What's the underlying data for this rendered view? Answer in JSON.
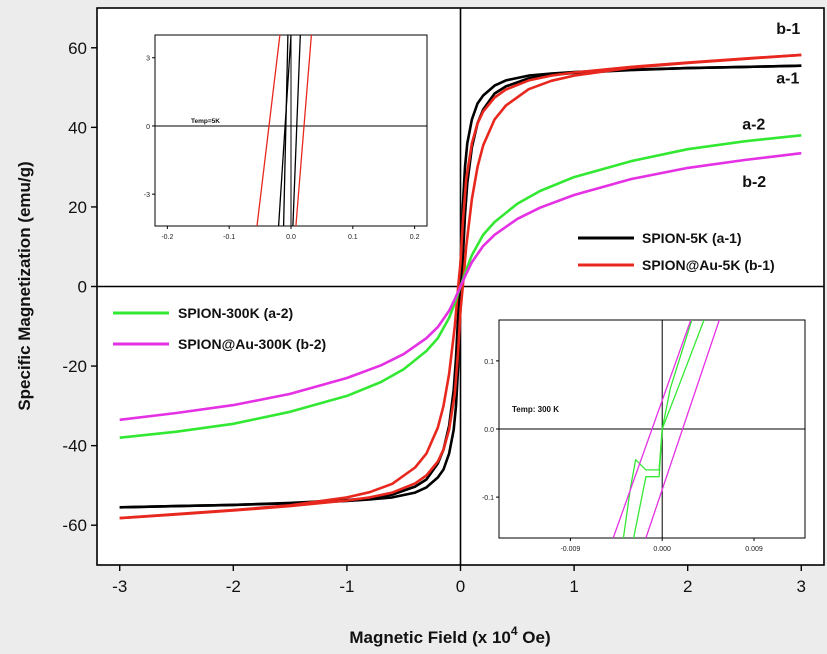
{
  "chart_data": [
    {
      "type": "line",
      "title": "",
      "xlabel": "Magnetic Field (x 10",
      "xlabel_sup": "4",
      "xlabel_tail": " Oe)",
      "ylabel": "Specific Magnetization (emu/g)",
      "xlim": [
        -3.2,
        3.2
      ],
      "ylim": [
        -70,
        70
      ],
      "xticks": [
        -3,
        -2,
        -1,
        0,
        1,
        2,
        3
      ],
      "yticks": [
        -60,
        -40,
        -20,
        0,
        20,
        40,
        60
      ],
      "xtick_labels": [
        "-3",
        "-2",
        "-1",
        "0",
        "1",
        "2",
        "3"
      ],
      "ytick_labels": [
        "-60",
        "-40",
        "-20",
        "0",
        "20",
        "40",
        "60"
      ],
      "series": [
        {
          "name": "SPION-5K (a-1)",
          "label": "a-1",
          "color": "#000000",
          "x": [
            0,
            0.01,
            0.02,
            0.04,
            0.06,
            0.1,
            0.15,
            0.2,
            0.3,
            0.4,
            0.6,
            0.8,
            1.0,
            1.5,
            2.0,
            2.5,
            3.0
          ],
          "upper": [
            5,
            12,
            20,
            30,
            36,
            42,
            46,
            48,
            50.5,
            51.8,
            53,
            53.5,
            53.9,
            54.5,
            54.9,
            55.2,
            55.5
          ],
          "lower": [
            -5,
            1.5,
            7,
            18,
            26,
            35,
            41,
            44.5,
            48.5,
            50.3,
            52.3,
            53.2,
            53.7,
            54.4,
            54.9,
            55.2,
            55.5
          ]
        },
        {
          "name": "SPION@Au-5K (b-1)",
          "label": "b-1",
          "color": "#e8281e",
          "x": [
            0,
            0.02,
            0.05,
            0.1,
            0.15,
            0.2,
            0.3,
            0.4,
            0.6,
            0.8,
            1.0,
            1.5,
            2.0,
            2.5,
            3.0
          ],
          "upper": [
            6,
            16,
            27,
            36,
            41,
            44,
            47.5,
            49.5,
            51.8,
            53,
            53.8,
            55.2,
            56.3,
            57.3,
            58.2
          ],
          "lower": [
            -6,
            0,
            10,
            22,
            30,
            35.5,
            42,
            45.5,
            49.6,
            51.7,
            53,
            55,
            56.2,
            57.2,
            58.2
          ]
        },
        {
          "name": "SPION-300K (a-2)",
          "label": "a-2",
          "color": "#33e833",
          "x": [
            0,
            0.05,
            0.1,
            0.2,
            0.3,
            0.5,
            0.7,
            1.0,
            1.5,
            2.0,
            2.5,
            3.0
          ],
          "values": [
            0,
            4.2,
            7.9,
            13,
            16.2,
            20.8,
            24,
            27.5,
            31.5,
            34.5,
            36.5,
            38
          ]
        },
        {
          "name": "SPION@Au-300K (b-2)",
          "label": "b-2",
          "color": "#e431e4",
          "x": [
            0,
            0.05,
            0.1,
            0.2,
            0.3,
            0.5,
            0.7,
            1.0,
            1.5,
            2.0,
            2.5,
            3.0
          ],
          "values": [
            0,
            3.2,
            6.1,
            10.2,
            13,
            17,
            19.8,
            23,
            27,
            29.8,
            31.8,
            33.5
          ]
        }
      ],
      "legend_top": [
        "SPION-5K (a-1)",
        "SPION@Au-5K (b-1)"
      ],
      "legend_bottom": [
        "SPION-300K (a-2)",
        "SPION@Au-300K (b-2)"
      ]
    },
    {
      "type": "line",
      "title": "",
      "annotation": "Temp=5K",
      "xlim": [
        -0.22,
        0.22
      ],
      "ylim": [
        -4.4,
        4
      ],
      "xticks": [
        -0.2,
        -0.1,
        0,
        0.1,
        0.2
      ],
      "yticks": [
        -3,
        0,
        3
      ],
      "xtick_labels": [
        "-0.2",
        "-0.1",
        "0.0",
        "0.1",
        "0.2"
      ],
      "ytick_labels": [
        "-3",
        "0",
        "3"
      ],
      "series": [
        {
          "name": "SPION-5K (a-1)",
          "color": "#000000",
          "lines": [
            [
              [
                -0.02,
                -4.4
              ],
              [
                0,
                4
              ]
            ],
            [
              [
                0.003,
                -4.4
              ],
              [
                0.015,
                4
              ]
            ],
            [
              [
                -0.012,
                -4.4
              ],
              [
                -0.005,
                4
              ]
            ]
          ]
        },
        {
          "name": "SPION@Au-5K (b-1)",
          "color": "#e8281e",
          "lines": [
            [
              [
                -0.055,
                -4.4
              ],
              [
                -0.018,
                4
              ]
            ],
            [
              [
                0.008,
                -4.4
              ],
              [
                0.033,
                4
              ]
            ]
          ]
        }
      ]
    },
    {
      "type": "line",
      "title": "",
      "annotation": "Temp: 300 K",
      "xlim": [
        -0.016,
        0.014
      ],
      "ylim": [
        -0.16,
        0.16
      ],
      "xticks": [
        -0.009,
        0,
        0.009
      ],
      "yticks": [
        -0.1,
        0,
        0.1
      ],
      "xtick_labels": [
        "-0.009",
        "0.000",
        "0.009"
      ],
      "ytick_labels": [
        "-0.1",
        "0.0",
        "0.1"
      ],
      "series": [
        {
          "name": "SPION-300K (a-2)",
          "color": "#33e833",
          "polylines": [
            [
              [
                -0.0028,
                -0.16
              ],
              [
                -0.0016,
                -0.07
              ],
              [
                -0.0003,
                -0.07
              ],
              [
                0.0,
                0.0
              ],
              [
                0.0018,
                0.07
              ],
              [
                0.0041,
                0.16
              ]
            ],
            [
              [
                -0.0038,
                -0.16
              ],
              [
                -0.0031,
                -0.085
              ],
              [
                -0.0026,
                -0.045
              ],
              [
                -0.0016,
                -0.06
              ],
              [
                -0.0003,
                -0.06
              ],
              [
                0.0,
                0.0
              ],
              [
                0.0008,
                0.06
              ],
              [
                0.0029,
                0.16
              ]
            ]
          ]
        },
        {
          "name": "SPION@Au-300K (b-2)",
          "color": "#e431e4",
          "lines": [
            [
              [
                -0.0048,
                -0.16
              ],
              [
                0.0028,
                0.16
              ]
            ],
            [
              [
                -0.0016,
                -0.16
              ],
              [
                0.0056,
                0.16
              ]
            ]
          ]
        }
      ]
    }
  ]
}
